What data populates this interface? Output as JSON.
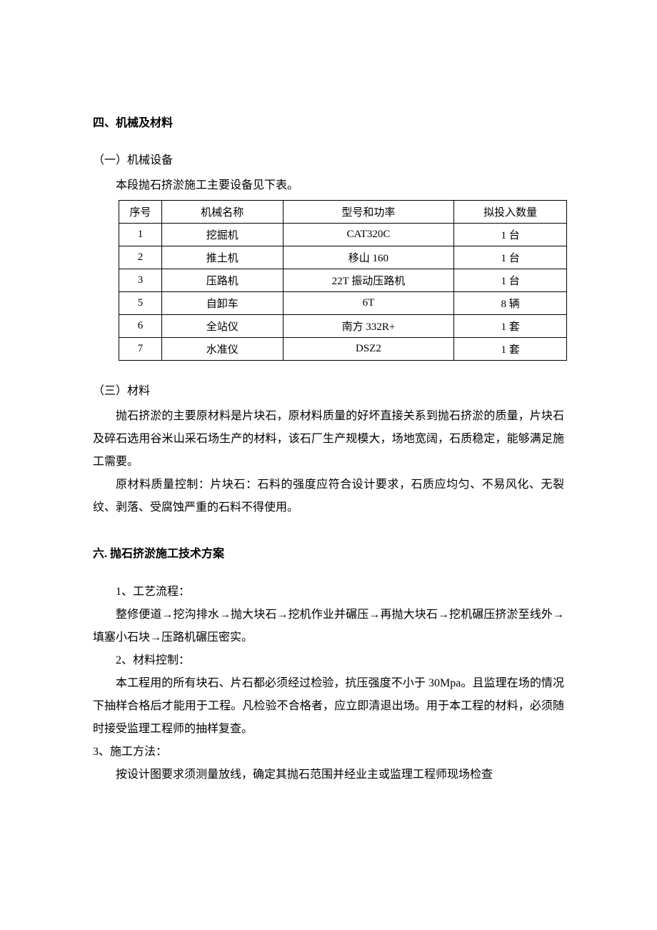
{
  "section4": {
    "title": "四、机械及材料",
    "sub1": {
      "label": "（一）机械设备",
      "intro": "本段抛石挤淤施工主要设备见下表。"
    },
    "table": {
      "headers": [
        "序号",
        "机械名称",
        "型号和功率",
        "拟投入数量"
      ],
      "rows": [
        [
          "1",
          "挖掘机",
          "CAT320C",
          "1 台"
        ],
        [
          "2",
          "推土机",
          "移山 160",
          "1 台"
        ],
        [
          "3",
          "压路机",
          "22T 振动压路机",
          "1 台"
        ],
        [
          "5",
          "自卸车",
          "6T",
          "8 辆"
        ],
        [
          "6",
          "全站仪",
          "南方 332R+",
          "1 套"
        ],
        [
          "7",
          "水准仪",
          "DSZ2",
          "1 套"
        ]
      ]
    },
    "sub3": {
      "label": "（三）材料",
      "p1": "抛石挤淤的主要原材料是片块石，原材料质量的好坏直接关系到抛石挤淤的质量，片块石及碎石选用谷米山采石场生产的材料，该石厂生产规模大，场地宽阔，石质稳定，能够满足施工需要。",
      "p2": "原材料质量控制：片块石：石料的强度应符合设计要求，石质应均匀、不易风化、无裂纹、剥落、受腐蚀严重的石料不得使用。"
    }
  },
  "section6": {
    "title": "六. 抛石挤淤施工技术方案",
    "item1_label": "1、工艺流程：",
    "item1_text": "整修便道→挖沟排水→抛大块石→挖机作业并碾压→再抛大块石→挖机碾压挤淤至线外→填塞小石块→压路机碾压密实。",
    "item2_label": "2、材料控制：",
    "item2_text": "本工程用的所有块石、片石都必须经过检验，抗压强度不小于 30Mpa。且监理在场的情况下抽样合格后才能用于工程。凡检验不合格者，应立即清退出场。用于本工程的材料，必须随时接受监理工程师的抽样复查。",
    "item3_label": "3、施工方法：",
    "item3_text": "按设计图要求须测量放线，确定其抛石范围并经业主或监理工程师现场检查"
  }
}
